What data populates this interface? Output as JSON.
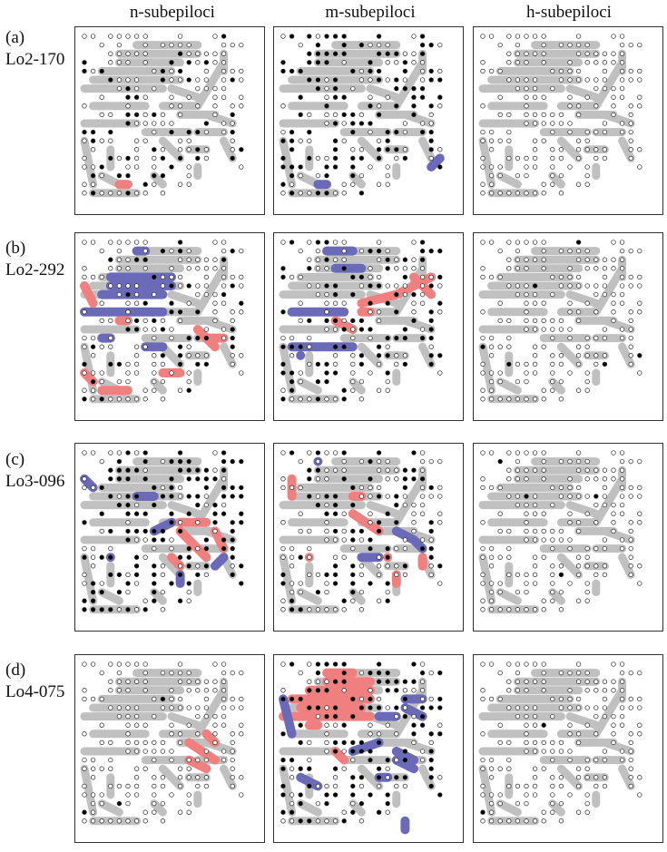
{
  "figure": {
    "columns": [
      {
        "key": "n",
        "label": "n-subepiloci"
      },
      {
        "key": "m",
        "label": "m-subepiloci"
      },
      {
        "key": "h",
        "label": "h-subepiloci"
      }
    ],
    "rows": [
      {
        "letter": "(a)",
        "locus": "Lo2-170"
      },
      {
        "letter": "(b)",
        "locus": "Lo2-292"
      },
      {
        "letter": "(c)",
        "locus": "Lo3-096"
      },
      {
        "letter": "(d)",
        "locus": "Lo4-075"
      }
    ],
    "colors": {
      "background_region": "#c0c0c0",
      "red_region": "#f08080",
      "blue_region": "#6a6ab8",
      "filled_dot": "#000000",
      "open_dot_stroke": "#222222"
    },
    "legend_semantics": {
      "filled_dot": "present",
      "open_dot": "absent"
    }
  }
}
